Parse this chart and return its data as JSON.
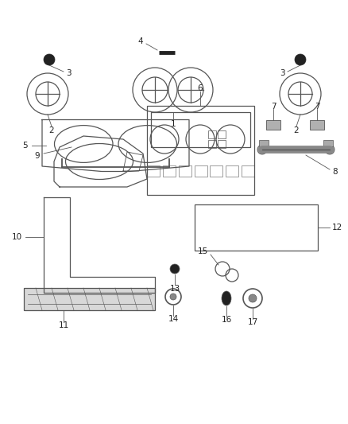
{
  "bg_color": "#ffffff",
  "line_color": "#555555",
  "dark_color": "#222222",
  "label_color": "#222222",
  "gray_fill": "#cccccc",
  "light_gray": "#e0e0e0"
}
